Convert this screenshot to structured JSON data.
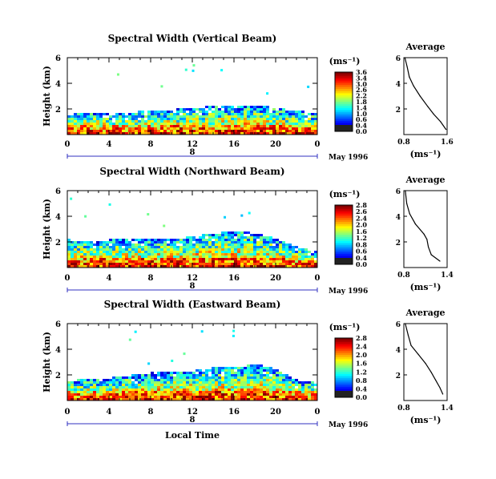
{
  "panels": [
    {
      "title": "Spectral Width (Vertical Beam)",
      "ylabel": "Height (km)",
      "yticks": [
        "6",
        "4",
        "2"
      ],
      "xticks": [
        "0",
        "4",
        "8",
        "12",
        "16",
        "20",
        "0"
      ],
      "day_label": "8",
      "date_label": "May 1996",
      "colorbar": {
        "unit_label": "(ms⁻¹)",
        "ticks": [
          "3.6",
          "3.4",
          "3.0",
          "2.6",
          "2.2",
          "1.8",
          "1.4",
          "1.0",
          "0.6",
          "0.4",
          "0.0"
        ]
      },
      "average": {
        "title": "Average",
        "yticks": [
          "6",
          "4",
          "2"
        ],
        "xticks": [
          "0.8",
          "1.6"
        ],
        "xlabel": "(ms⁻¹)"
      }
    },
    {
      "title": "Spectral Width (Northward Beam)",
      "ylabel": "Height (km)",
      "yticks": [
        "6",
        "4",
        "2"
      ],
      "xticks": [
        "0",
        "4",
        "8",
        "12",
        "16",
        "20",
        "0"
      ],
      "day_label": "8",
      "date_label": "May 1996",
      "colorbar": {
        "unit_label": "(ms⁻¹)",
        "ticks": [
          "2.8",
          "2.6",
          "2.4",
          "2.0",
          "1.6",
          "1.2",
          "0.8",
          "0.6",
          "0.4",
          "0.0"
        ]
      },
      "average": {
        "title": "Average",
        "yticks": [
          "6",
          "4",
          "2"
        ],
        "xticks": [
          "0.8",
          "1.4"
        ],
        "xlabel": "(ms⁻¹)"
      }
    },
    {
      "title": "Spectral Width (Eastward Beam)",
      "ylabel": "Height (km)",
      "yticks": [
        "6",
        "4",
        "2"
      ],
      "xticks": [
        "0",
        "4",
        "8",
        "12",
        "16",
        "20",
        "0"
      ],
      "day_label": "8",
      "date_label": "May 1996",
      "xlabel": "Local Time",
      "colorbar": {
        "unit_label": "(ms⁻¹)",
        "ticks": [
          "2.8",
          "2.4",
          "2.0",
          "1.6",
          "1.2",
          "0.8",
          "0.4",
          "0.0"
        ]
      },
      "average": {
        "title": "Average",
        "yticks": [
          "6",
          "4",
          "2"
        ],
        "xticks": [
          "0.8",
          "1.4"
        ],
        "xlabel": "(ms⁻¹)"
      }
    }
  ],
  "chart_data": [
    {
      "type": "heatmap",
      "title": "Spectral Width (Vertical Beam)",
      "xlabel": "",
      "ylabel": "Height (km)",
      "xlim_hours": [
        0,
        24
      ],
      "ylim": [
        0,
        6
      ],
      "colorbar_range": [
        0.0,
        3.6
      ],
      "envelope_top_km": [
        {
          "t": 0,
          "h": 1.6
        },
        {
          "t": 2,
          "h": 1.7
        },
        {
          "t": 4,
          "h": 1.6
        },
        {
          "t": 6,
          "h": 1.7
        },
        {
          "t": 8,
          "h": 1.8
        },
        {
          "t": 10,
          "h": 1.9
        },
        {
          "t": 12,
          "h": 2.0
        },
        {
          "t": 14,
          "h": 2.2
        },
        {
          "t": 16,
          "h": 2.1
        },
        {
          "t": 18,
          "h": 2.3
        },
        {
          "t": 20,
          "h": 2.0
        },
        {
          "t": 22,
          "h": 1.8
        },
        {
          "t": 24,
          "h": 1.6
        }
      ],
      "average_profile": {
        "xlim": [
          0.8,
          1.6
        ],
        "points": [
          {
            "x": 0.82,
            "y": 6.0
          },
          {
            "x": 0.86,
            "y": 5.3
          },
          {
            "x": 0.9,
            "y": 4.5
          },
          {
            "x": 0.98,
            "y": 3.8
          },
          {
            "x": 1.1,
            "y": 3.0
          },
          {
            "x": 1.24,
            "y": 2.2
          },
          {
            "x": 1.35,
            "y": 1.6
          },
          {
            "x": 1.48,
            "y": 1.0
          },
          {
            "x": 1.58,
            "y": 0.4
          }
        ]
      }
    },
    {
      "type": "heatmap",
      "title": "Spectral Width (Northward Beam)",
      "xlabel": "",
      "ylabel": "Height (km)",
      "xlim_hours": [
        0,
        24
      ],
      "ylim": [
        0,
        6
      ],
      "colorbar_range": [
        0.0,
        2.8
      ],
      "envelope_top_km": [
        {
          "t": 0,
          "h": 2.1
        },
        {
          "t": 2,
          "h": 2.0
        },
        {
          "t": 4,
          "h": 2.1
        },
        {
          "t": 6,
          "h": 2.1
        },
        {
          "t": 8,
          "h": 2.2
        },
        {
          "t": 10,
          "h": 2.2
        },
        {
          "t": 12,
          "h": 2.4
        },
        {
          "t": 14,
          "h": 2.6
        },
        {
          "t": 16,
          "h": 2.8
        },
        {
          "t": 18,
          "h": 2.6
        },
        {
          "t": 20,
          "h": 2.2
        },
        {
          "t": 22,
          "h": 1.5
        },
        {
          "t": 24,
          "h": 1.2
        }
      ],
      "average_profile": {
        "xlim": [
          0.8,
          1.4
        ],
        "points": [
          {
            "x": 0.82,
            "y": 6.0
          },
          {
            "x": 0.84,
            "y": 5.0
          },
          {
            "x": 0.88,
            "y": 4.2
          },
          {
            "x": 0.96,
            "y": 3.4
          },
          {
            "x": 1.08,
            "y": 2.6
          },
          {
            "x": 1.12,
            "y": 2.2
          },
          {
            "x": 1.14,
            "y": 1.6
          },
          {
            "x": 1.18,
            "y": 1.0
          },
          {
            "x": 1.3,
            "y": 0.5
          }
        ]
      }
    },
    {
      "type": "heatmap",
      "title": "Spectral Width (Eastward Beam)",
      "xlabel": "Local Time",
      "ylabel": "Height (km)",
      "xlim_hours": [
        0,
        24
      ],
      "ylim": [
        0,
        6
      ],
      "colorbar_range": [
        0.0,
        2.8
      ],
      "envelope_top_km": [
        {
          "t": 0,
          "h": 1.5
        },
        {
          "t": 2,
          "h": 1.6
        },
        {
          "t": 4,
          "h": 1.7
        },
        {
          "t": 6,
          "h": 1.9
        },
        {
          "t": 8,
          "h": 2.1
        },
        {
          "t": 10,
          "h": 2.2
        },
        {
          "t": 12,
          "h": 2.3
        },
        {
          "t": 14,
          "h": 2.5
        },
        {
          "t": 16,
          "h": 2.6
        },
        {
          "t": 18,
          "h": 2.8
        },
        {
          "t": 20,
          "h": 2.4
        },
        {
          "t": 22,
          "h": 1.5
        },
        {
          "t": 24,
          "h": 1.3
        }
      ],
      "average_profile": {
        "xlim": [
          0.8,
          1.4
        ],
        "points": [
          {
            "x": 0.82,
            "y": 6.0
          },
          {
            "x": 0.86,
            "y": 5.1
          },
          {
            "x": 0.9,
            "y": 4.3
          },
          {
            "x": 1.0,
            "y": 3.6
          },
          {
            "x": 1.1,
            "y": 2.9
          },
          {
            "x": 1.18,
            "y": 2.2
          },
          {
            "x": 1.24,
            "y": 1.6
          },
          {
            "x": 1.3,
            "y": 1.0
          },
          {
            "x": 1.34,
            "y": 0.5
          }
        ]
      }
    }
  ]
}
